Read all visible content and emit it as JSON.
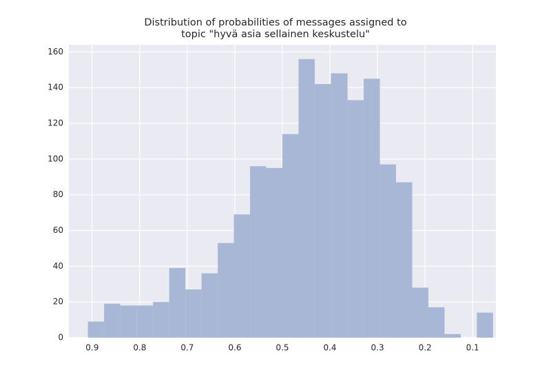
{
  "chart_data": {
    "type": "histogram",
    "title": "Distribution of probabilities of messages assigned to\ntopic \"hyvä asia sellainen keskustelu\"",
    "bins": [
      0.057,
      0.091,
      0.125,
      0.159,
      0.193,
      0.227,
      0.261,
      0.295,
      0.329,
      0.363,
      0.398,
      0.432,
      0.466,
      0.5,
      0.534,
      0.568,
      0.602,
      0.636,
      0.67,
      0.704,
      0.738,
      0.772,
      0.806,
      0.841,
      0.875,
      0.909
    ],
    "values": [
      14,
      0,
      2,
      17,
      28,
      87,
      97,
      145,
      133,
      148,
      142,
      156,
      114,
      95,
      96,
      69,
      53,
      36,
      27,
      39,
      20,
      18,
      18,
      19,
      9
    ],
    "color": "#a9b7d6",
    "xlim": [
      0.949,
      0.051
    ],
    "xticks": [
      0.9,
      0.8,
      0.7,
      0.6,
      0.5,
      0.4,
      0.3,
      0.2,
      0.1
    ],
    "ylim": [
      0,
      164
    ],
    "yticks": [
      0,
      20,
      40,
      60,
      80,
      100,
      120,
      140,
      160
    ],
    "grid": true
  }
}
